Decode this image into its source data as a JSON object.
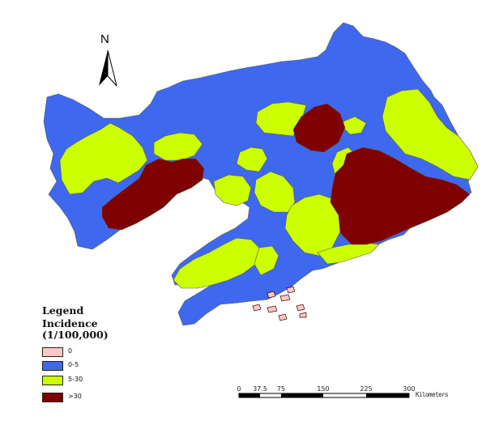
{
  "north_arrow": {
    "label": "N",
    "icon": "north-arrow-icon"
  },
  "legend": {
    "title": "Legend",
    "subtitle_line1": "Incidence",
    "subtitle_line2": "(1/100,000)",
    "items": [
      {
        "label": "0",
        "color": "#ffc6c6"
      },
      {
        "label": "0-5",
        "color": "#3e68ed"
      },
      {
        "label": "5-30",
        "color": "#ccff00"
      },
      {
        "label": ">30",
        "color": "#7f0000"
      }
    ]
  },
  "scale_bar": {
    "ticks": [
      "0",
      "37.5",
      "75",
      "150",
      "225",
      "300"
    ],
    "unit": "Kilometers"
  },
  "colors": {
    "background": "#ffffff",
    "boundary": "#666666"
  }
}
